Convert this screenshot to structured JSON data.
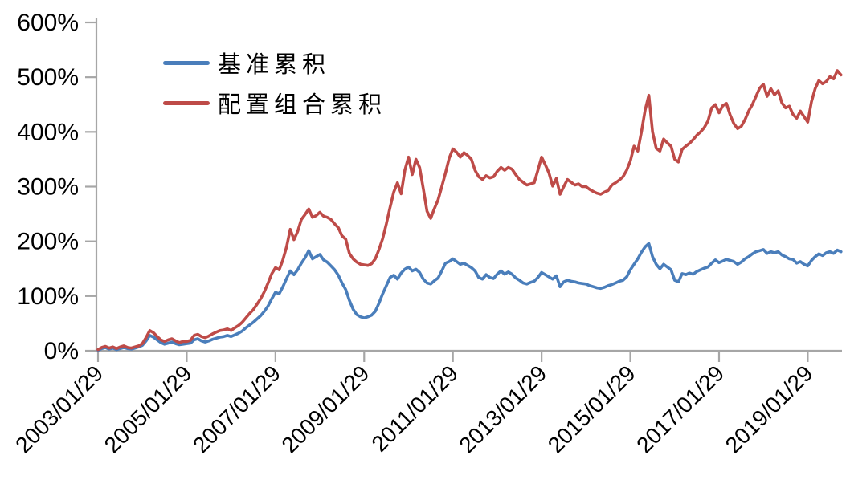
{
  "legend": {
    "items": [
      {
        "label": "基准累积",
        "color": "#4A7EBB"
      },
      {
        "label": "配置组合累积",
        "color": "#BE4B48"
      }
    ]
  },
  "axis": {
    "line_color": "#A6A6A6",
    "text_color": "#000000",
    "background": "#FFFFFF"
  },
  "chart_data": {
    "type": "line",
    "title": "",
    "xlabel": "",
    "ylabel": "",
    "grid": false,
    "legend_position": "upper-left-inside",
    "ylim": [
      0,
      600
    ],
    "y_ticks": [
      "0%",
      "100%",
      "200%",
      "300%",
      "400%",
      "500%",
      "600%"
    ],
    "x_ticks": [
      "2003/01/29",
      "2005/01/29",
      "2007/01/29",
      "2009/01/29",
      "2011/01/29",
      "2013/01/29",
      "2015/01/29",
      "2017/01/29",
      "2019/01/29"
    ],
    "x_tick_interval_months": 24,
    "x_start_month": "2003-01",
    "sampling": "monthly",
    "units": "percent_cumulative_return",
    "series": [
      {
        "name": "基准累积",
        "color": "#4A7EBB",
        "values": [
          1,
          4,
          6,
          3,
          5,
          2,
          4,
          6,
          4,
          3,
          5,
          7,
          10,
          18,
          28,
          25,
          20,
          15,
          12,
          14,
          16,
          13,
          11,
          12,
          13,
          14,
          20,
          22,
          18,
          16,
          18,
          21,
          23,
          25,
          26,
          28,
          26,
          29,
          32,
          36,
          42,
          47,
          52,
          58,
          64,
          72,
          82,
          95,
          107,
          104,
          117,
          132,
          146,
          139,
          148,
          160,
          170,
          183,
          168,
          172,
          176,
          166,
          162,
          155,
          148,
          138,
          124,
          112,
          92,
          76,
          66,
          62,
          60,
          62,
          65,
          72,
          87,
          104,
          119,
          134,
          138,
          131,
          142,
          149,
          153,
          146,
          149,
          143,
          131,
          124,
          122,
          128,
          133,
          146,
          160,
          163,
          168,
          163,
          158,
          160,
          156,
          152,
          146,
          134,
          131,
          139,
          134,
          132,
          140,
          146,
          140,
          144,
          140,
          133,
          129,
          124,
          122,
          125,
          127,
          134,
          143,
          139,
          135,
          131,
          137,
          117,
          126,
          129,
          127,
          126,
          124,
          123,
          122,
          119,
          117,
          115,
          114,
          116,
          119,
          121,
          124,
          127,
          129,
          135,
          148,
          158,
          168,
          180,
          190,
          196,
          172,
          158,
          150,
          158,
          153,
          148,
          129,
          126,
          141,
          139,
          142,
          140,
          145,
          148,
          151,
          153,
          160,
          166,
          161,
          164,
          167,
          165,
          163,
          158,
          162,
          168,
          172,
          177,
          181,
          183,
          185,
          178,
          181,
          179,
          181,
          175,
          172,
          168,
          167,
          160,
          163,
          158,
          155,
          165,
          172,
          177,
          174,
          179,
          181,
          178,
          184,
          181
        ]
      },
      {
        "name": "配置组合累积",
        "color": "#BE4B48",
        "values": [
          2,
          6,
          8,
          5,
          7,
          4,
          7,
          9,
          6,
          5,
          7,
          9,
          13,
          24,
          37,
          33,
          26,
          20,
          17,
          20,
          22,
          18,
          15,
          17,
          17,
          19,
          28,
          30,
          26,
          24,
          27,
          31,
          34,
          37,
          38,
          40,
          37,
          42,
          46,
          52,
          60,
          68,
          75,
          85,
          95,
          108,
          124,
          141,
          152,
          148,
          166,
          190,
          222,
          203,
          218,
          240,
          249,
          259,
          244,
          247,
          253,
          246,
          244,
          240,
          232,
          225,
          210,
          204,
          178,
          168,
          162,
          158,
          157,
          156,
          159,
          168,
          185,
          205,
          232,
          262,
          290,
          307,
          287,
          330,
          354,
          322,
          350,
          335,
          296,
          255,
          242,
          260,
          276,
          300,
          325,
          352,
          369,
          363,
          354,
          362,
          357,
          350,
          330,
          318,
          313,
          320,
          316,
          318,
          328,
          335,
          330,
          335,
          332,
          322,
          313,
          308,
          303,
          305,
          307,
          330,
          354,
          340,
          325,
          301,
          315,
          286,
          300,
          313,
          308,
          303,
          305,
          300,
          300,
          295,
          291,
          288,
          286,
          290,
          293,
          303,
          307,
          312,
          318,
          330,
          347,
          374,
          365,
          400,
          440,
          467,
          400,
          370,
          365,
          387,
          380,
          374,
          350,
          345,
          368,
          374,
          379,
          386,
          394,
          400,
          408,
          420,
          444,
          450,
          435,
          448,
          452,
          431,
          415,
          406,
          410,
          422,
          438,
          450,
          465,
          480,
          487,
          465,
          479,
          468,
          475,
          453,
          444,
          447,
          432,
          425,
          438,
          428,
          418,
          455,
          479,
          494,
          488,
          492,
          501,
          497,
          512,
          504
        ]
      }
    ]
  }
}
